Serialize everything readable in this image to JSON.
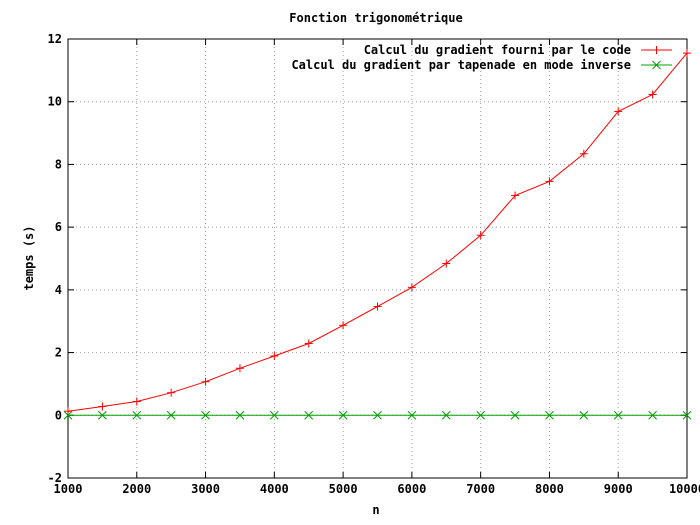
{
  "chart_data": {
    "type": "line",
    "title": "Fonction trigonométrique",
    "xlabel": "n",
    "ylabel": "temps (s)",
    "xlim": [
      1000,
      10000
    ],
    "ylim": [
      -2,
      12
    ],
    "x_ticks": [
      1000,
      2000,
      3000,
      4000,
      5000,
      6000,
      7000,
      8000,
      9000,
      10000
    ],
    "y_ticks": [
      -2,
      0,
      2,
      4,
      6,
      8,
      10,
      12
    ],
    "grid": true,
    "legend_position": "top-right",
    "x": [
      1000,
      1500,
      2000,
      2500,
      3000,
      3500,
      4000,
      4500,
      5000,
      5500,
      6000,
      6500,
      7000,
      7500,
      8000,
      8500,
      9000,
      9500,
      10000
    ],
    "series": [
      {
        "name": "Calcul du gradient fourni par le code",
        "color": "#ff0000",
        "marker": "plus",
        "values": [
          0.13,
          0.28,
          0.44,
          0.72,
          1.07,
          1.5,
          1.89,
          2.29,
          2.87,
          3.47,
          4.08,
          4.84,
          5.74,
          7.01,
          7.46,
          8.34,
          9.69,
          10.23,
          11.55
        ]
      },
      {
        "name": "Calcul du gradient par tapenade en mode inverse",
        "color": "#00a000",
        "marker": "cross",
        "values": [
          0.0,
          0.0,
          0.0,
          0.0,
          0.0,
          0.0,
          0.0,
          0.0,
          0.0,
          0.0,
          0.0,
          0.0,
          0.0,
          0.0,
          0.0,
          0.0,
          0.0,
          0.0,
          0.0
        ]
      }
    ]
  }
}
